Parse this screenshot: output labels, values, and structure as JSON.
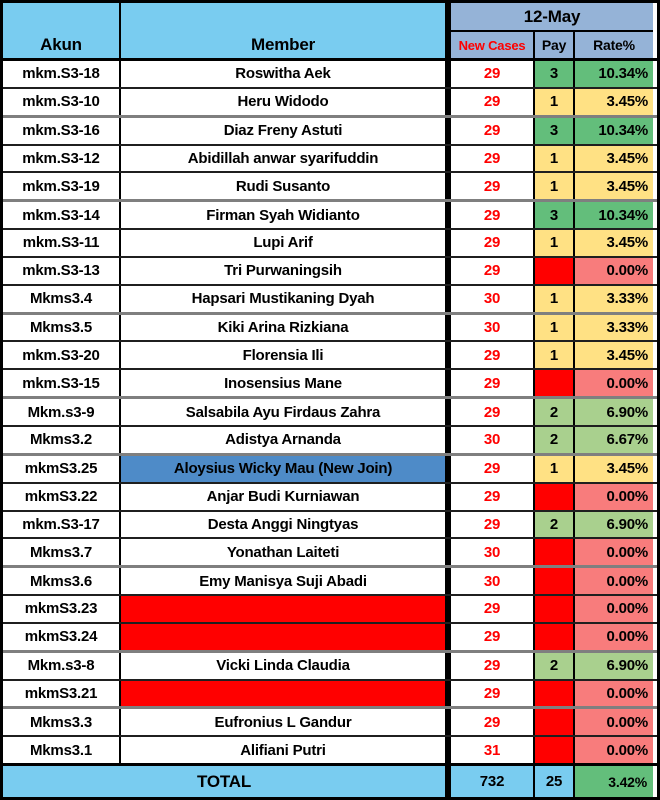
{
  "header": {
    "akun": "Akun",
    "member": "Member",
    "date": "12-May",
    "new_cases": "New Cases",
    "pay": "Pay",
    "rate": "Rate%"
  },
  "colors": {
    "sky_blue": "#79CCF0",
    "header_blue": "#95B3D7",
    "green_high": "#63BE7B",
    "green_mid": "#A9D08E",
    "yellow": "#FFE184",
    "red": "#FF0000",
    "salmon": "#F87C7C",
    "member_blue": "#4E8BC8"
  },
  "rows": [
    {
      "akun": "mkm.S3-18",
      "member": "Roswitha Aek",
      "cases": "29",
      "pay": "3",
      "rate": "10.34%",
      "tier": "high",
      "member_style": "normal"
    },
    {
      "akun": "mkm.S3-10",
      "member": "Heru Widodo",
      "cases": "29",
      "pay": "1",
      "rate": "3.45%",
      "tier": "low",
      "member_style": "normal"
    },
    {
      "akun": "mkm.S3-16",
      "member": "Diaz Freny Astuti",
      "cases": "29",
      "pay": "3",
      "rate": "10.34%",
      "tier": "high",
      "member_style": "normal"
    },
    {
      "akun": "mkm.S3-12",
      "member": "Abidillah anwar syarifuddin",
      "cases": "29",
      "pay": "1",
      "rate": "3.45%",
      "tier": "low",
      "member_style": "normal"
    },
    {
      "akun": "mkm.S3-19",
      "member": "Rudi Susanto",
      "cases": "29",
      "pay": "1",
      "rate": "3.45%",
      "tier": "low",
      "member_style": "normal"
    },
    {
      "akun": "mkm.S3-14",
      "member": "Firman Syah Widianto",
      "cases": "29",
      "pay": "3",
      "rate": "10.34%",
      "tier": "high",
      "member_style": "normal"
    },
    {
      "akun": "mkm.S3-11",
      "member": "Lupi Arif",
      "cases": "29",
      "pay": "1",
      "rate": "3.45%",
      "tier": "low",
      "member_style": "normal"
    },
    {
      "akun": "mkm.S3-13",
      "member": "Tri Purwaningsih",
      "cases": "29",
      "pay": "",
      "rate": "0.00%",
      "tier": "zero",
      "member_style": "normal"
    },
    {
      "akun": "Mkms3.4",
      "member": "Hapsari Mustikaning Dyah",
      "cases": "30",
      "pay": "1",
      "rate": "3.33%",
      "tier": "low",
      "member_style": "normal"
    },
    {
      "akun": "Mkms3.5",
      "member": "Kiki Arina Rizkiana",
      "cases": "30",
      "pay": "1",
      "rate": "3.33%",
      "tier": "low",
      "member_style": "normal"
    },
    {
      "akun": "mkm.S3-20",
      "member": "Florensia Ili",
      "cases": "29",
      "pay": "1",
      "rate": "3.45%",
      "tier": "low",
      "member_style": "normal"
    },
    {
      "akun": "mkm.S3-15",
      "member": "Inosensius Mane",
      "cases": "29",
      "pay": "",
      "rate": "0.00%",
      "tier": "zero",
      "member_style": "normal"
    },
    {
      "akun": "Mkm.s3-9",
      "member": "Salsabila Ayu Firdaus Zahra",
      "cases": "29",
      "pay": "2",
      "rate": "6.90%",
      "tier": "mid",
      "member_style": "normal"
    },
    {
      "akun": "Mkms3.2",
      "member": "Adistya Arnanda",
      "cases": "30",
      "pay": "2",
      "rate": "6.67%",
      "tier": "mid",
      "member_style": "normal"
    },
    {
      "akun": "mkmS3.25",
      "member": "Aloysius Wicky Mau (New Join)",
      "cases": "29",
      "pay": "1",
      "rate": "3.45%",
      "tier": "low",
      "member_style": "highlight"
    },
    {
      "akun": "mkmS3.22",
      "member": "Anjar Budi Kurniawan",
      "cases": "29",
      "pay": "",
      "rate": "0.00%",
      "tier": "zero",
      "member_style": "normal"
    },
    {
      "akun": "mkm.S3-17",
      "member": "Desta Anggi Ningtyas",
      "cases": "29",
      "pay": "2",
      "rate": "6.90%",
      "tier": "mid",
      "member_style": "normal"
    },
    {
      "akun": "Mkms3.7",
      "member": "Yonathan Laiteti",
      "cases": "30",
      "pay": "",
      "rate": "0.00%",
      "tier": "zero",
      "member_style": "normal"
    },
    {
      "akun": "Mkms3.6",
      "member": "Emy Manisya Suji Abadi",
      "cases": "30",
      "pay": "",
      "rate": "0.00%",
      "tier": "zero",
      "member_style": "normal"
    },
    {
      "akun": "mkmS3.23",
      "member": "",
      "cases": "29",
      "pay": "",
      "rate": "0.00%",
      "tier": "zero",
      "member_style": "blocked"
    },
    {
      "akun": "mkmS3.24",
      "member": "",
      "cases": "29",
      "pay": "",
      "rate": "0.00%",
      "tier": "zero",
      "member_style": "blocked"
    },
    {
      "akun": "Mkm.s3-8",
      "member": "Vicki Linda Claudia",
      "cases": "29",
      "pay": "2",
      "rate": "6.90%",
      "tier": "mid",
      "member_style": "normal"
    },
    {
      "akun": "mkmS3.21",
      "member": "",
      "cases": "29",
      "pay": "",
      "rate": "0.00%",
      "tier": "zero",
      "member_style": "blocked"
    },
    {
      "akun": "Mkms3.3",
      "member": "Eufronius L Gandur",
      "cases": "29",
      "pay": "",
      "rate": "0.00%",
      "tier": "zero",
      "member_style": "normal"
    },
    {
      "akun": "Mkms3.1",
      "member": "Alifiani Putri",
      "cases": "31",
      "pay": "",
      "rate": "0.00%",
      "tier": "zero",
      "member_style": "normal"
    }
  ],
  "total": {
    "label": "TOTAL",
    "new_cases": "732",
    "pay": "25",
    "rate": "3.42%"
  }
}
